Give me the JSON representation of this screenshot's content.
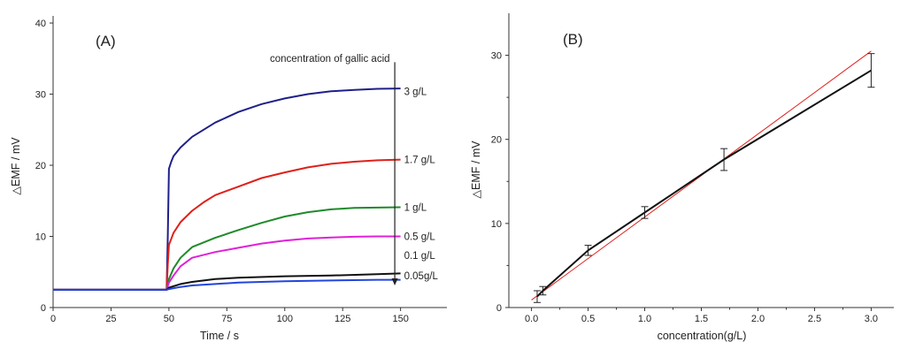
{
  "chart_data": [
    {
      "panel_label": "(A)",
      "type": "line",
      "xlabel": "Time / s",
      "ylabel": "△EMF / mV",
      "xlim": [
        0,
        170
      ],
      "ylim": [
        0,
        41
      ],
      "xticks": [
        "0",
        "25",
        "50",
        "75",
        "100",
        "125",
        "150"
      ],
      "yticks": [
        "0",
        "10",
        "20",
        "30",
        "40"
      ],
      "legend_title": "concentration of gallic acid",
      "series": [
        {
          "name": "3 g/L",
          "color": "#1f1f8c",
          "x": [
            0,
            49,
            49.5,
            50,
            51,
            52,
            55,
            60,
            65,
            70,
            80,
            90,
            100,
            110,
            120,
            130,
            140,
            150
          ],
          "y": [
            2.5,
            2.5,
            10,
            19.5,
            20.5,
            21.3,
            22.5,
            24,
            25,
            26,
            27.5,
            28.6,
            29.4,
            30,
            30.4,
            30.6,
            30.75,
            30.8
          ]
        },
        {
          "name": "1.7 g/L",
          "color": "#e0201a",
          "x": [
            0,
            49,
            49.5,
            50,
            52,
            55,
            60,
            65,
            70,
            80,
            90,
            100,
            110,
            120,
            130,
            140,
            150
          ],
          "y": [
            2.5,
            2.5,
            6,
            8.8,
            10.5,
            12,
            13.6,
            14.8,
            15.8,
            17,
            18.2,
            19,
            19.7,
            20.2,
            20.5,
            20.7,
            20.8
          ]
        },
        {
          "name": "1 g/L",
          "color": "#1e8a2a",
          "x": [
            0,
            49,
            50,
            52,
            55,
            60,
            70,
            80,
            90,
            100,
            110,
            120,
            130,
            140,
            150
          ],
          "y": [
            2.5,
            2.5,
            4,
            5.5,
            7,
            8.5,
            9.8,
            10.9,
            11.9,
            12.8,
            13.4,
            13.8,
            14,
            14.05,
            14.1
          ]
        },
        {
          "name": "0.5 g/L",
          "color": "#e020d8",
          "x": [
            0,
            49,
            50,
            52,
            55,
            60,
            70,
            80,
            90,
            100,
            110,
            120,
            130,
            140,
            150
          ],
          "y": [
            2.5,
            2.5,
            3.5,
            4.5,
            5.8,
            7,
            7.8,
            8.4,
            9,
            9.4,
            9.7,
            9.85,
            9.95,
            10,
            10
          ]
        },
        {
          "name": "0.1 g/L",
          "color": "#111111",
          "x": [
            0,
            49,
            50,
            55,
            60,
            70,
            80,
            100,
            120,
            140,
            150
          ],
          "y": [
            2.5,
            2.5,
            2.8,
            3.3,
            3.6,
            4,
            4.2,
            4.4,
            4.5,
            4.7,
            4.8
          ]
        },
        {
          "name": "0.05g/L",
          "color": "#2244dd",
          "x": [
            0,
            49,
            50,
            55,
            60,
            70,
            80,
            100,
            120,
            140,
            150
          ],
          "y": [
            2.5,
            2.5,
            2.6,
            2.9,
            3.1,
            3.3,
            3.5,
            3.7,
            3.8,
            3.9,
            3.9
          ]
        }
      ]
    },
    {
      "panel_label": "(B)",
      "type": "line",
      "xlabel": "concentration(g/L)",
      "ylabel": "△EMF / mV",
      "xlim": [
        -0.2,
        3.2
      ],
      "ylim": [
        0,
        35
      ],
      "xticks": [
        "0.0",
        "0.5",
        "1.0",
        "1.5",
        "2.0",
        "2.5",
        "3.0"
      ],
      "yticks": [
        "0",
        "10",
        "20",
        "30"
      ],
      "series": [
        {
          "role": "measured",
          "color": "#111111",
          "x": [
            0.05,
            0.1,
            0.5,
            1.0,
            1.7,
            3.0
          ],
          "y": [
            1.3,
            2.0,
            6.8,
            11.3,
            17.6,
            28.2
          ],
          "error": [
            0.7,
            0.5,
            0.6,
            0.7,
            1.3,
            2.0
          ]
        },
        {
          "role": "fit",
          "color": "#e0201a",
          "x": [
            0.0,
            3.0
          ],
          "y": [
            0.9,
            30.5
          ]
        }
      ]
    }
  ]
}
